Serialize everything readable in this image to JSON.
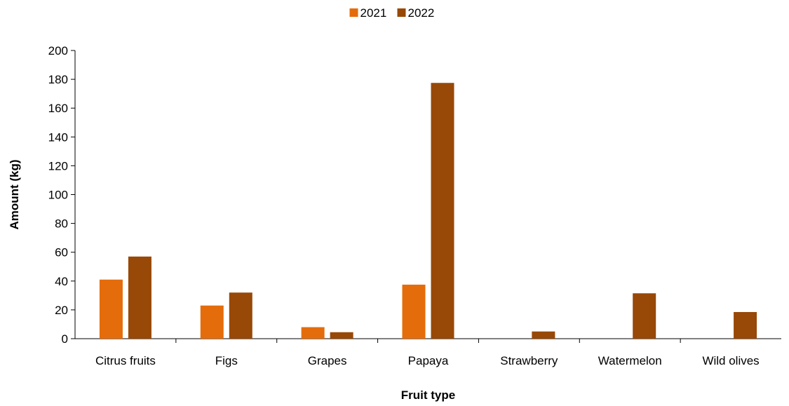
{
  "chart_data": {
    "type": "bar",
    "categories": [
      "Citrus fruits",
      "Figs",
      "Grapes",
      "Papaya",
      "Strawberry",
      "Watermelon",
      "Wild olives"
    ],
    "series": [
      {
        "name": "2021",
        "color": "#E46C0A",
        "values": [
          41,
          23,
          8,
          37.5,
          null,
          null,
          null
        ]
      },
      {
        "name": "2022",
        "color": "#984807",
        "values": [
          57,
          32,
          4.5,
          177.5,
          5,
          31.5,
          18.5
        ]
      }
    ],
    "xlabel": "Fruit type",
    "ylabel": "Amount (kg)",
    "ylim": [
      0,
      200
    ],
    "yticks": [
      0,
      20,
      40,
      60,
      80,
      100,
      120,
      140,
      160,
      180,
      200
    ],
    "grid": false,
    "legend_position": "top-center"
  }
}
